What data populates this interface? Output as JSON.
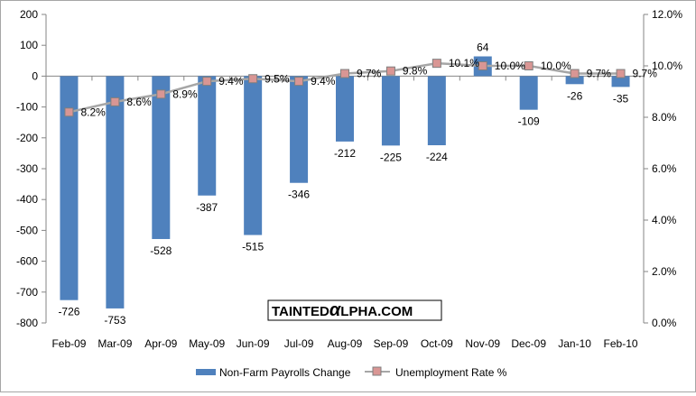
{
  "chart_data": {
    "type": "bar+line",
    "categories": [
      "Feb-09",
      "Mar-09",
      "Apr-09",
      "May-09",
      "Jun-09",
      "Jul-09",
      "Aug-09",
      "Sep-09",
      "Oct-09",
      "Nov-09",
      "Dec-09",
      "Jan-10",
      "Feb-10"
    ],
    "series": [
      {
        "name": "Non-Farm Payrolls Change",
        "type": "bar",
        "axis": "left",
        "values": [
          -726,
          -753,
          -528,
          -387,
          -515,
          -346,
          -212,
          -225,
          -224,
          64,
          -109,
          -26,
          -35
        ],
        "labels": [
          "-726",
          "-753",
          "-528",
          "-387",
          "-515",
          "-346",
          "-212",
          "-225",
          "-224",
          "64",
          "-109",
          "-26",
          "-35"
        ]
      },
      {
        "name": "Unemployment Rate %",
        "type": "line",
        "axis": "right",
        "values": [
          8.2,
          8.6,
          8.9,
          9.4,
          9.5,
          9.4,
          9.7,
          9.8,
          10.1,
          10.0,
          10.0,
          9.7,
          9.7
        ],
        "labels": [
          "8.2%",
          "8.6%",
          "8.9%",
          "9.4%",
          "9.5%",
          "9.4%",
          "9.7%",
          "9.8%",
          "10.1%",
          "10.0%",
          "10.0%",
          "9.7%",
          "9.7%"
        ]
      }
    ],
    "y_left": {
      "min": -800,
      "max": 200,
      "ticks": [
        "200",
        "100",
        "0",
        "-100",
        "-200",
        "-300",
        "-400",
        "-500",
        "-600",
        "-700",
        "-800"
      ]
    },
    "y_right": {
      "min": 0,
      "max": 12,
      "ticks": [
        "12.0%",
        "10.0%",
        "8.0%",
        "6.0%",
        "4.0%",
        "2.0%",
        "0.0%"
      ]
    },
    "legend": [
      "Non-Farm Payrolls Change",
      "Unemployment Rate %"
    ],
    "legend_position": "bottom",
    "grid": false
  },
  "watermark": {
    "text": "TAINTEDαLPHA.COM",
    "part1": "TAINTED",
    "part2": "α",
    "part3": "LPHA.COM"
  },
  "colors": {
    "bar": "#4f81bd",
    "line": "#a6a6a6",
    "marker_fill": "#d99694",
    "marker_stroke": "#7f7f7f",
    "axis": "#868686"
  }
}
